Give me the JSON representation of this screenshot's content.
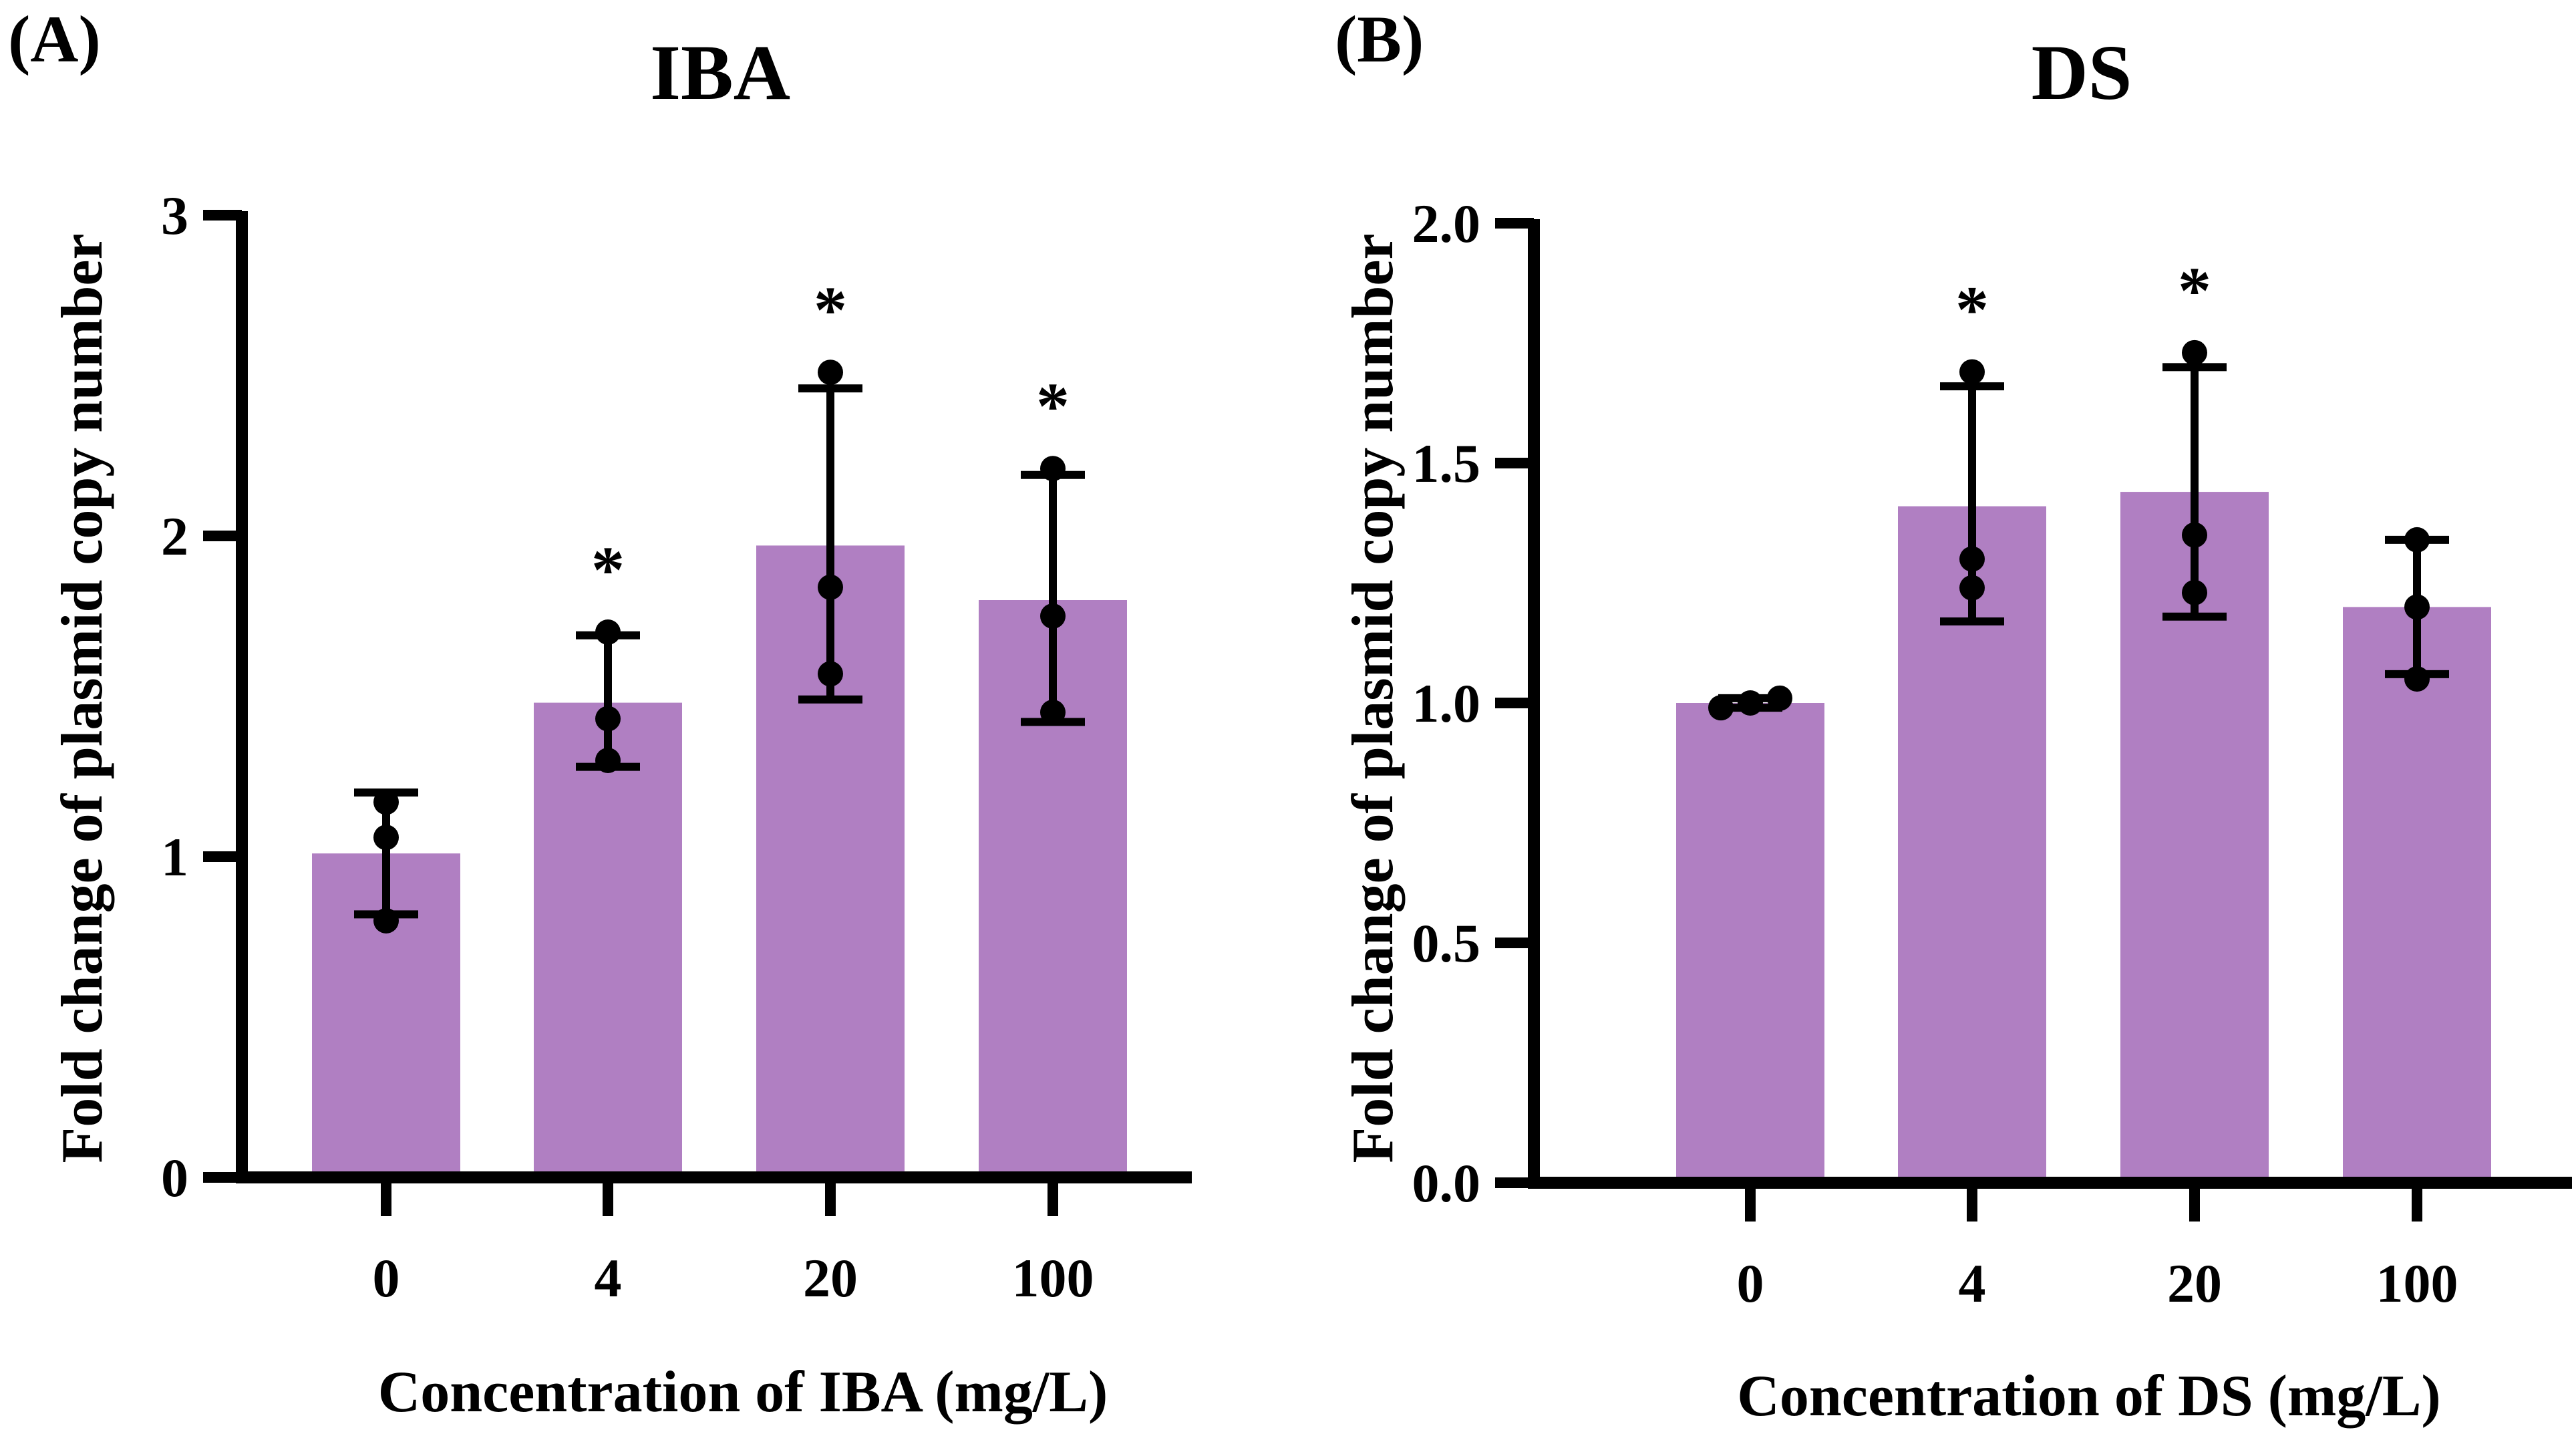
{
  "colors": {
    "bar": "#b07fc2",
    "ink": "#000000",
    "background": "#ffffff"
  },
  "chart_data": [
    {
      "type": "bar",
      "panel_label": "(A)",
      "title": "IBA",
      "xlabel": "Concentration of  IBA (mg/L)",
      "ylabel": "Fold change of plasmid copy number",
      "ylim": [
        0,
        3
      ],
      "yticks": [
        0,
        1,
        2,
        3
      ],
      "ytick_labels": [
        "0",
        "1",
        "2",
        "3"
      ],
      "categories": [
        "0",
        "4",
        "20",
        "100"
      ],
      "values": [
        1.01,
        1.48,
        1.97,
        1.8
      ],
      "error_low": [
        0.82,
        1.28,
        1.49,
        1.42
      ],
      "error_high": [
        1.2,
        1.69,
        2.46,
        2.19
      ],
      "points": [
        [
          0.8,
          1.06,
          1.17
        ],
        [
          1.3,
          1.43,
          1.7
        ],
        [
          1.57,
          1.84,
          2.51
        ],
        [
          1.45,
          1.75,
          2.21
        ]
      ],
      "significance": [
        "",
        "*",
        "*",
        "*"
      ]
    },
    {
      "type": "bar",
      "panel_label": "(B)",
      "title": "DS",
      "xlabel": "Concentration of  DS (mg/L)",
      "ylabel": "Fold change of plasmid copy number",
      "ylim": [
        0,
        2.0
      ],
      "yticks": [
        0,
        0.5,
        1.0,
        1.5,
        2.0
      ],
      "ytick_labels": [
        "0.0",
        "0.5",
        "1.0",
        "1.5",
        "2.0"
      ],
      "categories": [
        "0",
        "4",
        "20",
        "100"
      ],
      "values": [
        1.0,
        1.41,
        1.44,
        1.2
      ],
      "error_low": [
        0.99,
        1.17,
        1.18,
        1.06
      ],
      "error_high": [
        1.01,
        1.66,
        1.7,
        1.34
      ],
      "points": [
        [
          0.99,
          1.0,
          1.01
        ],
        [
          1.24,
          1.3,
          1.69
        ],
        [
          1.23,
          1.35,
          1.73
        ],
        [
          1.05,
          1.2,
          1.34
        ]
      ],
      "significance": [
        "",
        "*",
        "*",
        ""
      ]
    }
  ]
}
